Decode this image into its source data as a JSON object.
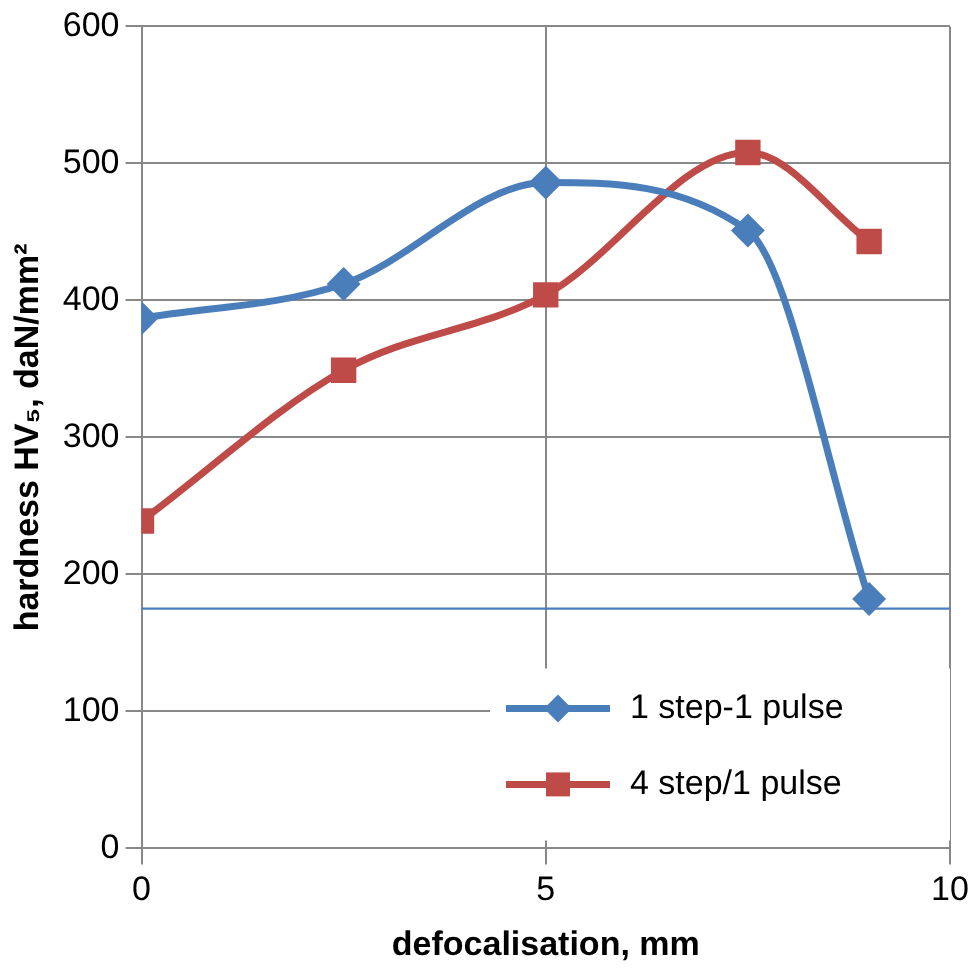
{
  "chart_data": {
    "type": "line",
    "xlabel": "defocalisation, mm",
    "ylabel": "hardness HV₅, daN/mm²",
    "x": [
      0,
      2.5,
      5,
      7.5,
      9
    ],
    "series": [
      {
        "name": "1 step-1 pulse",
        "color": "#4a7ebb",
        "values": [
          387,
          412,
          486,
          451,
          182
        ],
        "marker": "diamond"
      },
      {
        "name": "4 step/1 pulse",
        "color": "#be4b48",
        "values": [
          239,
          349,
          404,
          508,
          443
        ],
        "marker": "square"
      }
    ],
    "xlim": [
      0,
      10
    ],
    "xticks": [
      0,
      5,
      10
    ],
    "ylim": [
      0,
      600
    ],
    "yticks": [
      0,
      100,
      200,
      300,
      400,
      500,
      600
    ],
    "ref_lines": [
      {
        "axis": "y",
        "value": 175,
        "color": "#4a7ebb"
      }
    ],
    "grid": true,
    "legend": "bottom right"
  }
}
